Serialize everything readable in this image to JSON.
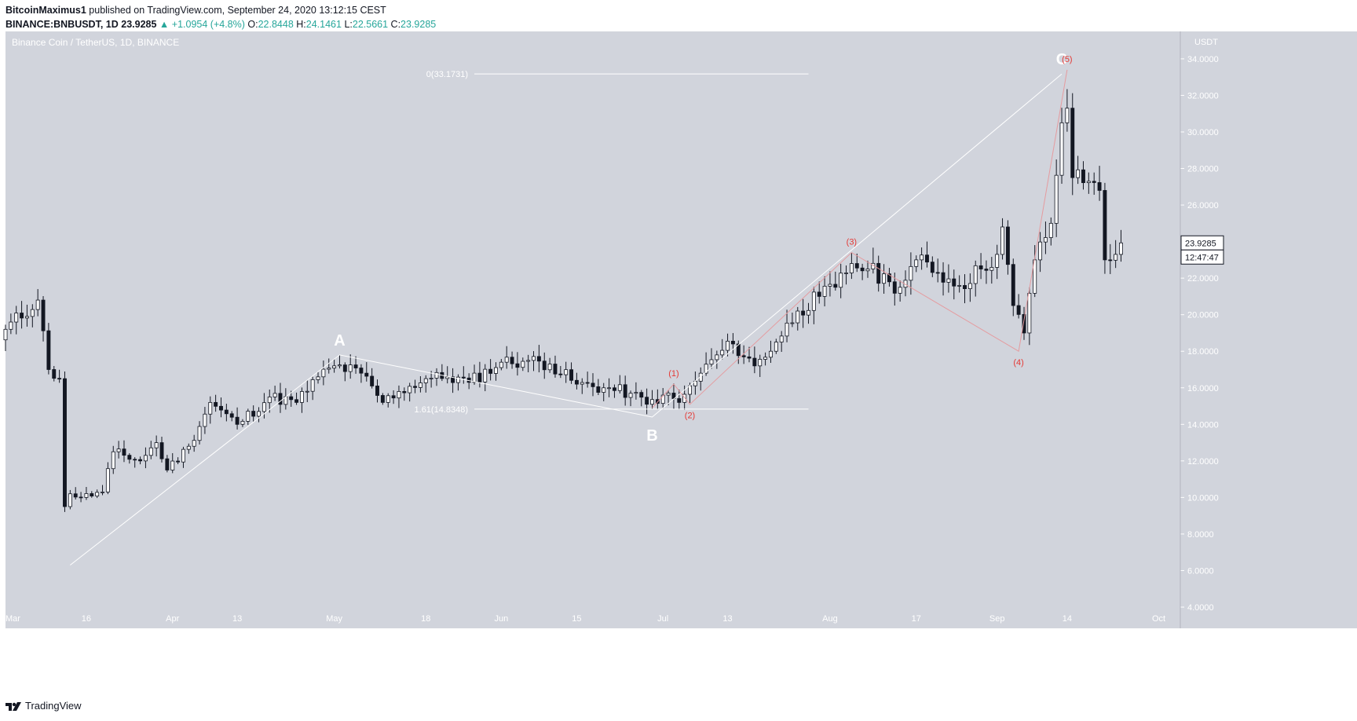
{
  "header": {
    "author": "BitcoinMaximus1",
    "published_text": "published on TradingView.com, September 24, 2020 13:12:15 CEST",
    "symbol": "BINANCE:BNBUSDT, 1D",
    "last": "23.9285",
    "change": "+1.0954 (+4.8%)",
    "o_label": "O:",
    "o_value": "22.8448",
    "h_label": "H:",
    "h_value": "24.1461",
    "l_label": "L:",
    "l_value": "22.5661",
    "c_label": "C:",
    "c_value": "23.9285"
  },
  "footer": {
    "brand": "TradingView",
    "logo_icon": "tradingview-logo-icon"
  },
  "colors": {
    "plot_bg": "#d1d4dc",
    "up_body": "#ffffff",
    "down_body": "#131722",
    "wick": "#131722",
    "wave_line": "#ffffff",
    "subwave_line": "#e59b9f",
    "subwave_label": "#e53935",
    "change_up": "#26a69a"
  },
  "chart_data": {
    "type": "candlestick",
    "title": "Binance Coin / TetherUS, 1D, BINANCE",
    "y_unit": "USDT",
    "ylim": [
      4,
      35.5
    ],
    "price_ticks": [
      "4.0000",
      "6.0000",
      "8.0000",
      "10.0000",
      "12.0000",
      "14.0000",
      "16.0000",
      "18.0000",
      "20.0000",
      "22.0000",
      "24.0000",
      "26.0000",
      "28.0000",
      "30.0000",
      "32.0000",
      "34.0000"
    ],
    "x_range_dates": [
      "2020-03-01",
      "2020-10-05"
    ],
    "x_ticks": [
      {
        "date": "2020-03-01",
        "label": "Mar"
      },
      {
        "date": "2020-03-16",
        "label": "16"
      },
      {
        "date": "2020-04-01",
        "label": "Apr"
      },
      {
        "date": "2020-04-13",
        "label": "13"
      },
      {
        "date": "2020-05-01",
        "label": "May"
      },
      {
        "date": "2020-05-18",
        "label": "18"
      },
      {
        "date": "2020-06-01",
        "label": "Jun"
      },
      {
        "date": "2020-06-15",
        "label": "15"
      },
      {
        "date": "2020-07-01",
        "label": "Jul"
      },
      {
        "date": "2020-07-13",
        "label": "13"
      },
      {
        "date": "2020-08-01",
        "label": "Aug"
      },
      {
        "date": "2020-08-17",
        "label": "17"
      },
      {
        "date": "2020-09-01",
        "label": "Sep"
      },
      {
        "date": "2020-09-14",
        "label": "14"
      },
      {
        "date": "2020-10-01",
        "label": "Oct"
      }
    ],
    "price_label": "23.9285",
    "countdown_label": "12:47:47",
    "guide_points": [
      [
        "2020-03-01",
        19.2
      ],
      [
        "2020-03-07",
        20.8
      ],
      [
        "2020-03-09",
        17.0
      ],
      [
        "2020-03-11",
        16.5
      ],
      [
        "2020-03-12",
        9.5
      ],
      [
        "2020-03-13",
        10.2
      ],
      [
        "2020-03-15",
        10.0
      ],
      [
        "2020-03-19",
        10.3
      ],
      [
        "2020-03-21",
        12.5
      ],
      [
        "2020-03-26",
        12.0
      ],
      [
        "2020-03-29",
        13.0
      ],
      [
        "2020-03-31",
        11.5
      ],
      [
        "2020-04-04",
        12.8
      ],
      [
        "2020-04-08",
        15.2
      ],
      [
        "2020-04-13",
        14.0
      ],
      [
        "2020-04-19",
        15.5
      ],
      [
        "2020-04-24",
        15.2
      ],
      [
        "2020-04-28",
        16.6
      ],
      [
        "2020-05-01",
        17.2
      ],
      [
        "2020-05-06",
        16.8
      ],
      [
        "2020-05-10",
        15.2
      ],
      [
        "2020-05-13",
        15.8
      ],
      [
        "2020-05-18",
        16.5
      ],
      [
        "2020-05-22",
        16.6
      ],
      [
        "2020-05-26",
        16.3
      ],
      [
        "2020-06-01",
        17.4
      ],
      [
        "2020-06-06",
        17.5
      ],
      [
        "2020-06-10",
        17.3
      ],
      [
        "2020-06-15",
        16.2
      ],
      [
        "2020-06-20",
        16.0
      ],
      [
        "2020-06-25",
        15.7
      ],
      [
        "2020-06-28",
        15.1
      ],
      [
        "2020-07-01",
        15.6
      ],
      [
        "2020-07-04",
        15.2
      ],
      [
        "2020-07-08",
        16.8
      ],
      [
        "2020-07-11",
        17.8
      ],
      [
        "2020-07-14",
        18.4
      ],
      [
        "2020-07-18",
        17.2
      ],
      [
        "2020-07-22",
        18.5
      ],
      [
        "2020-07-26",
        20.2
      ],
      [
        "2020-07-30",
        21.0
      ],
      [
        "2020-08-02",
        21.5
      ],
      [
        "2020-08-05",
        22.8
      ],
      [
        "2020-08-08",
        22.5
      ],
      [
        "2020-08-12",
        21.8
      ],
      [
        "2020-08-14",
        21.5
      ],
      [
        "2020-08-17",
        23.0
      ],
      [
        "2020-08-21",
        22.3
      ],
      [
        "2020-08-25",
        21.6
      ],
      [
        "2020-08-29",
        22.5
      ],
      [
        "2020-09-01",
        23.3
      ],
      [
        "2020-09-02",
        24.8
      ],
      [
        "2020-09-04",
        20.5
      ],
      [
        "2020-09-06",
        19.0
      ],
      [
        "2020-09-08",
        23.0
      ],
      [
        "2020-09-11",
        25.0
      ],
      [
        "2020-09-13",
        30.5
      ],
      [
        "2020-09-14",
        31.3
      ],
      [
        "2020-09-15",
        27.5
      ],
      [
        "2020-09-18",
        27.3
      ],
      [
        "2020-09-20",
        26.8
      ],
      [
        "2020-09-21",
        23.0
      ],
      [
        "2020-09-23",
        23.3
      ],
      [
        "2020-09-24",
        23.9285
      ]
    ],
    "annotations": {
      "fib_levels": [
        {
          "label": "0(33.1731)",
          "price": 33.1731,
          "from": "2020-05-27",
          "to": "2020-07-28"
        },
        {
          "label": "1.61(14.8348)",
          "price": 14.8348,
          "from": "2020-05-27",
          "to": "2020-07-28"
        }
      ],
      "abc_wave": [
        {
          "label": "",
          "date": "2020-03-13",
          "price": 6.3
        },
        {
          "label": "A",
          "date": "2020-05-02",
          "price": 17.8
        },
        {
          "label": "B",
          "date": "2020-06-29",
          "price": 14.4
        },
        {
          "label": "C",
          "date": "2020-09-13",
          "price": 33.17
        }
      ],
      "sub_waves": [
        {
          "label": "",
          "date": "2020-06-29",
          "price": 14.9
        },
        {
          "label": "(1)",
          "date": "2020-07-03",
          "price": 16.2
        },
        {
          "label": "(2)",
          "date": "2020-07-06",
          "price": 15.1
        },
        {
          "label": "(3)",
          "date": "2020-08-05",
          "price": 23.4
        },
        {
          "label": "(4)",
          "date": "2020-09-05",
          "price": 18.0
        },
        {
          "label": "(5)",
          "date": "2020-09-14",
          "price": 33.4
        }
      ]
    }
  }
}
